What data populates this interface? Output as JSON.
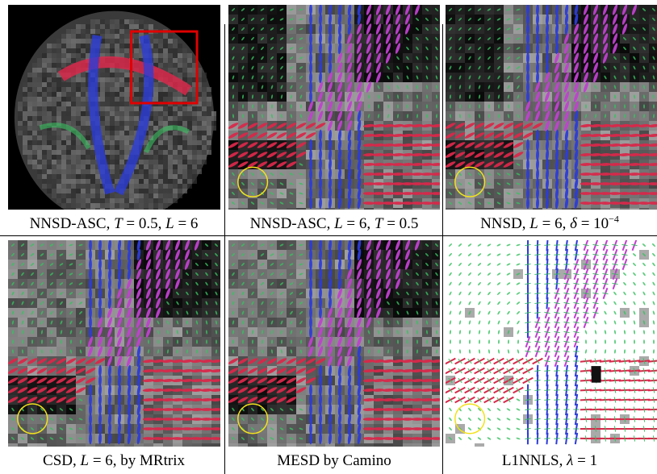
{
  "figure": {
    "panels": [
      {
        "id": "a",
        "caption_parts": [
          "NNSD-ASC, ",
          "T",
          " = 0.5, ",
          "L",
          " = 6"
        ],
        "has_roi_box": true,
        "roi_box_color": "#e00000",
        "has_circle": false
      },
      {
        "id": "b",
        "caption_parts": [
          "NNSD-ASC, ",
          "L",
          " = 6, ",
          "T",
          " = 0.5"
        ],
        "has_roi_box": false,
        "has_circle": true
      },
      {
        "id": "c",
        "caption_parts": [
          "NNSD, ",
          "L",
          " = 6, ",
          "δ",
          " = 10",
          "−4"
        ],
        "has_roi_box": false,
        "has_circle": true
      },
      {
        "id": "d",
        "caption_parts": [
          "CSD, ",
          "L",
          " = 6, by MRtrix"
        ],
        "has_roi_box": false,
        "has_circle": true
      },
      {
        "id": "e",
        "caption_parts": [
          "MESD by Camino"
        ],
        "has_roi_box": false,
        "has_circle": true
      },
      {
        "id": "f",
        "caption_parts": [
          "L1NNLS, ",
          "λ",
          " = 1"
        ],
        "has_roi_box": false,
        "has_circle": true
      }
    ],
    "colors": {
      "circle": "#f2e21c",
      "roi_box": "#e00000",
      "lr_fiber": "#d8284a",
      "si_fiber": "#2c3cd8",
      "ap_fiber": "#38c060",
      "diagonal_fiber": "#c040d0"
    }
  }
}
